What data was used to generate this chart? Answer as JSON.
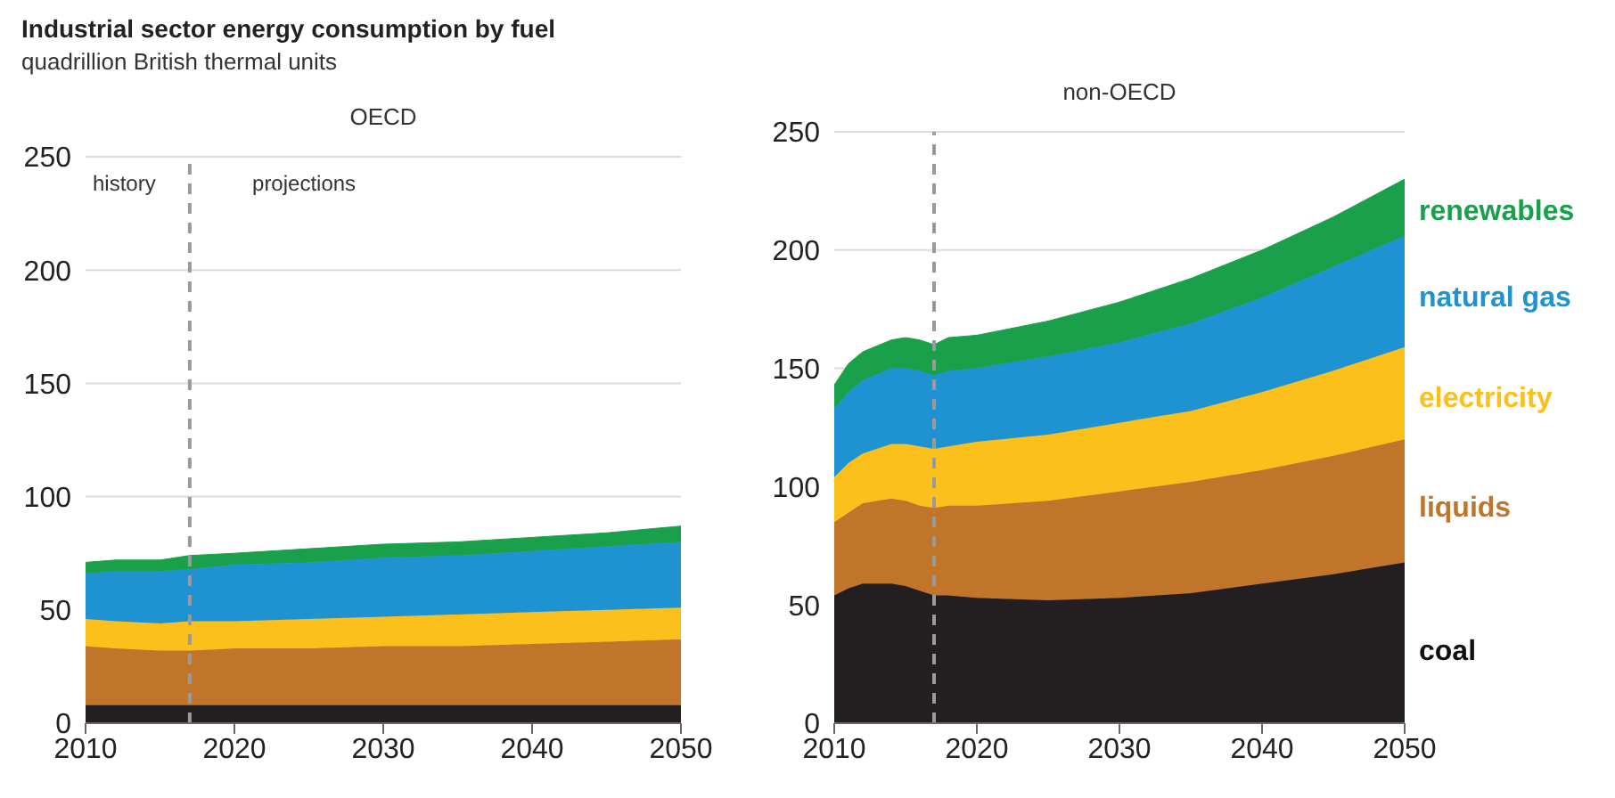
{
  "chart_data": [
    {
      "type": "area",
      "stacked": true,
      "title": "Industrial sector energy consumption by fuel",
      "subtitle": "quadrillion British thermal units",
      "annotations": [
        "OECD",
        "history",
        "projections"
      ],
      "x": [
        2010,
        2012,
        2015,
        2017,
        2020,
        2025,
        2030,
        2035,
        2040,
        2045,
        2050
      ],
      "series": [
        {
          "color": "#231f20",
          "values": [
            8,
            8,
            8,
            8,
            8,
            8,
            8,
            8,
            8,
            8,
            8
          ]
        },
        {
          "color": "#c0752b",
          "values": [
            26,
            25,
            24,
            24,
            25,
            25,
            26,
            26,
            27,
            28,
            29
          ]
        },
        {
          "color": "#fbc01c",
          "values": [
            12,
            12,
            12,
            13,
            12,
            13,
            13,
            14,
            14,
            14,
            14
          ]
        },
        {
          "color": "#1f93d2",
          "values": [
            20,
            22,
            23,
            23,
            25,
            25,
            26,
            26,
            27,
            28,
            29
          ]
        },
        {
          "color": "#1aa04a",
          "values": [
            5,
            5,
            5,
            6,
            5,
            6,
            6,
            6,
            6,
            6,
            7
          ]
        }
      ],
      "xlim": [
        2010,
        2050
      ],
      "xticks": [
        2010,
        2020,
        2030,
        2040,
        2050
      ],
      "ylim": [
        0,
        250
      ],
      "yticks": [
        0,
        50,
        100,
        150,
        200,
        250
      ],
      "grid": "y",
      "legend": false,
      "ref_lines": [
        {
          "axis": "x",
          "value": 2017,
          "color": "#9a9a9a",
          "line_style": "dashed"
        }
      ]
    },
    {
      "type": "area",
      "stacked": true,
      "title": "non-OECD",
      "x": [
        2010,
        2011,
        2012,
        2014,
        2015,
        2016,
        2017,
        2018,
        2020,
        2025,
        2030,
        2035,
        2040,
        2045,
        2050
      ],
      "series": [
        {
          "name": "coal",
          "color": "#231f20",
          "values": [
            54,
            57,
            59,
            59,
            58,
            56,
            54,
            54,
            53,
            52,
            53,
            55,
            59,
            63,
            68
          ]
        },
        {
          "name": "liquids",
          "color": "#c0752b",
          "values": [
            31,
            32,
            34,
            36,
            36,
            36,
            37,
            38,
            39,
            42,
            45,
            47,
            48,
            50,
            52
          ]
        },
        {
          "name": "electricity",
          "color": "#fbc01c",
          "values": [
            19,
            21,
            21,
            23,
            24,
            25,
            25,
            25,
            27,
            28,
            29,
            30,
            33,
            36,
            39
          ]
        },
        {
          "name": "natural gas",
          "color": "#1f93d2",
          "values": [
            29,
            30,
            31,
            32,
            32,
            32,
            31,
            32,
            31,
            33,
            34,
            37,
            40,
            44,
            47
          ]
        },
        {
          "name": "renewables",
          "color": "#1aa04a",
          "values": [
            10,
            12,
            12,
            12,
            13,
            13,
            13,
            14,
            14,
            15,
            17,
            19,
            20,
            21,
            24
          ]
        }
      ],
      "xlim": [
        2010,
        2050
      ],
      "xticks": [
        2010,
        2020,
        2030,
        2040,
        2050
      ],
      "ylim": [
        0,
        250
      ],
      "yticks": [
        0,
        50,
        100,
        150,
        200,
        250
      ],
      "grid": "y",
      "legend": false,
      "ref_lines": [
        {
          "axis": "x",
          "value": 2017,
          "color": "#9a9a9a",
          "line_style": "dashed"
        }
      ]
    }
  ]
}
